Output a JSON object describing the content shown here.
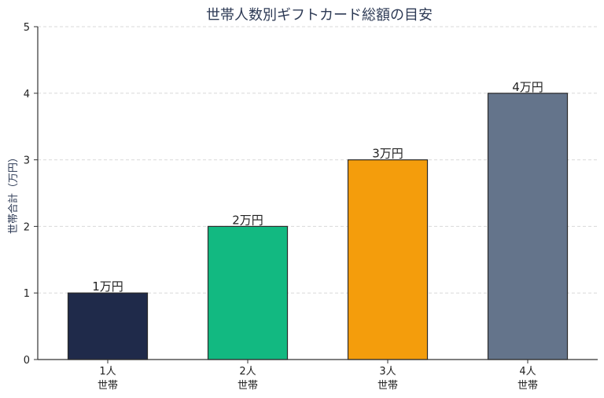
{
  "chart_data": {
    "type": "bar",
    "title": "世帯人数別ギフトカード総額の目安",
    "xlabel": "",
    "ylabel": "世帯合計（万円）",
    "categories": [
      {
        "line1": "1人",
        "line2": "世帯"
      },
      {
        "line1": "2人",
        "line2": "世帯"
      },
      {
        "line1": "3人",
        "line2": "世帯"
      },
      {
        "line1": "4人",
        "line2": "世帯"
      }
    ],
    "values": [
      1,
      2,
      3,
      4
    ],
    "value_labels": [
      "1万円",
      "2万円",
      "3万円",
      "4万円"
    ],
    "colors": [
      "#1f2a4a",
      "#12b981",
      "#f49d0c",
      "#64748b"
    ],
    "ylim": [
      0,
      5
    ],
    "yticks": [
      0,
      1,
      2,
      3,
      4,
      5
    ],
    "grid": true
  }
}
